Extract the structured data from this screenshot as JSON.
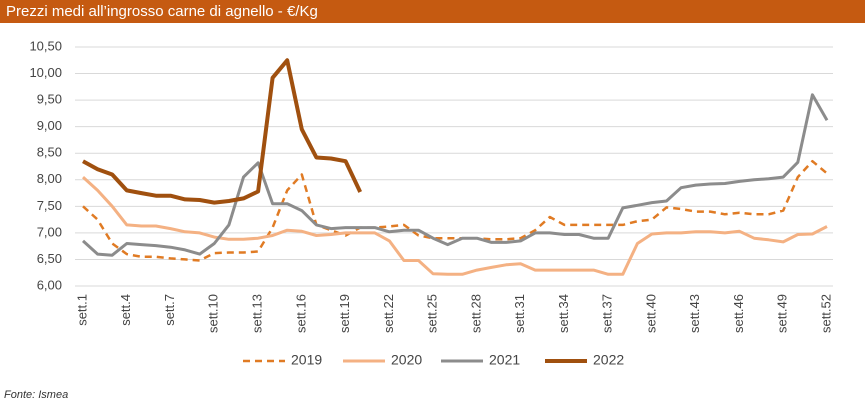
{
  "chart_data": {
    "type": "line",
    "title": "Prezzi medi all’ingrosso carne di agnello - €/Kg",
    "source": "Fonte: Ismea",
    "categories": [
      "sett.1",
      null,
      null,
      "sett.4",
      null,
      null,
      "sett.7",
      null,
      null,
      "sett.10",
      null,
      null,
      "sett.13",
      null,
      null,
      "sett.16",
      null,
      null,
      "sett.19",
      null,
      null,
      "sett.22",
      null,
      null,
      "sett.25",
      null,
      null,
      "sett.28",
      null,
      null,
      "sett.31",
      null,
      null,
      "sett.34",
      null,
      null,
      "sett.37",
      null,
      null,
      "sett.40",
      null,
      null,
      "sett.43",
      null,
      null,
      "sett.46",
      null,
      null,
      "sett.49",
      null,
      null,
      "sett.52"
    ],
    "ylim": [
      6,
      10.5
    ],
    "yticks": [
      {
        "value": 6,
        "label": "6,00"
      },
      {
        "value": 6.5,
        "label": "6,50"
      },
      {
        "value": 7,
        "label": "7,00"
      },
      {
        "value": 7.5,
        "label": "7,50"
      },
      {
        "value": 8,
        "label": "8,00"
      },
      {
        "value": 8.5,
        "label": "8,50"
      },
      {
        "value": 9,
        "label": "9,00"
      },
      {
        "value": 9.5,
        "label": "9,50"
      },
      {
        "value": 10,
        "label": "10,00"
      },
      {
        "value": 10.5,
        "label": "10,50"
      }
    ],
    "grid": true,
    "legend": "bottom",
    "series": [
      {
        "name": "2019",
        "color": "#e07b24",
        "line_style": "dashed",
        "values": [
          7.5,
          7.25,
          6.8,
          6.6,
          6.55,
          6.55,
          6.52,
          6.5,
          6.48,
          6.62,
          6.63,
          6.63,
          6.65,
          7.1,
          7.8,
          8.1,
          7.15,
          7.05,
          6.95,
          7.1,
          7.1,
          7.12,
          7.15,
          6.95,
          6.9,
          6.9,
          6.9,
          6.9,
          6.88,
          6.88,
          6.9,
          7.05,
          7.3,
          7.15,
          7.15,
          7.15,
          7.15,
          7.15,
          7.22,
          7.25,
          7.48,
          7.45,
          7.4,
          7.4,
          7.35,
          7.38,
          7.35,
          7.35,
          7.42,
          8.05,
          8.35,
          8.12
        ]
      },
      {
        "name": "2020",
        "color": "#f4b183",
        "line_style": "solid",
        "values": [
          8.05,
          7.8,
          7.5,
          7.15,
          7.13,
          7.13,
          7.08,
          7.02,
          7.0,
          6.92,
          6.88,
          6.88,
          6.9,
          6.95,
          7.05,
          7.03,
          6.95,
          6.97,
          7.0,
          7.0,
          7.0,
          6.85,
          6.48,
          6.48,
          6.23,
          6.22,
          6.22,
          6.3,
          6.35,
          6.4,
          6.42,
          6.3,
          6.3,
          6.3,
          6.3,
          6.3,
          6.22,
          6.22,
          6.8,
          6.98,
          7.0,
          7.0,
          7.02,
          7.02,
          7.0,
          7.03,
          6.9,
          6.87,
          6.83,
          6.97,
          6.98,
          7.12
        ]
      },
      {
        "name": "2021",
        "color": "#8c8c8c",
        "line_style": "solid",
        "values": [
          6.85,
          6.6,
          6.58,
          6.8,
          6.78,
          6.76,
          6.73,
          6.68,
          6.6,
          6.8,
          7.15,
          8.05,
          8.32,
          7.55,
          7.55,
          7.42,
          7.15,
          7.08,
          7.1,
          7.1,
          7.1,
          7.02,
          7.05,
          7.05,
          6.9,
          6.78,
          6.9,
          6.9,
          6.82,
          6.82,
          6.85,
          7.0,
          7.0,
          6.97,
          6.97,
          6.9,
          6.9,
          7.47,
          7.52,
          7.57,
          7.6,
          7.85,
          7.9,
          7.92,
          7.93,
          7.97,
          8.0,
          8.02,
          8.05,
          8.33,
          9.6,
          9.12
        ]
      },
      {
        "name": "2022",
        "color": "#a0500f",
        "line_style": "solid",
        "values": [
          8.35,
          8.2,
          8.1,
          7.8,
          7.75,
          7.7,
          7.7,
          7.63,
          7.62,
          7.57,
          7.6,
          7.65,
          7.78,
          9.92,
          10.25,
          8.95,
          8.42,
          8.4,
          8.35,
          7.77,
          null,
          null,
          null,
          null,
          null,
          null,
          null,
          null,
          null,
          null,
          null,
          null,
          null,
          null,
          null,
          null,
          null,
          null,
          null,
          null,
          null,
          null,
          null,
          null,
          null,
          null,
          null,
          null,
          null,
          null,
          null,
          null
        ]
      }
    ]
  }
}
